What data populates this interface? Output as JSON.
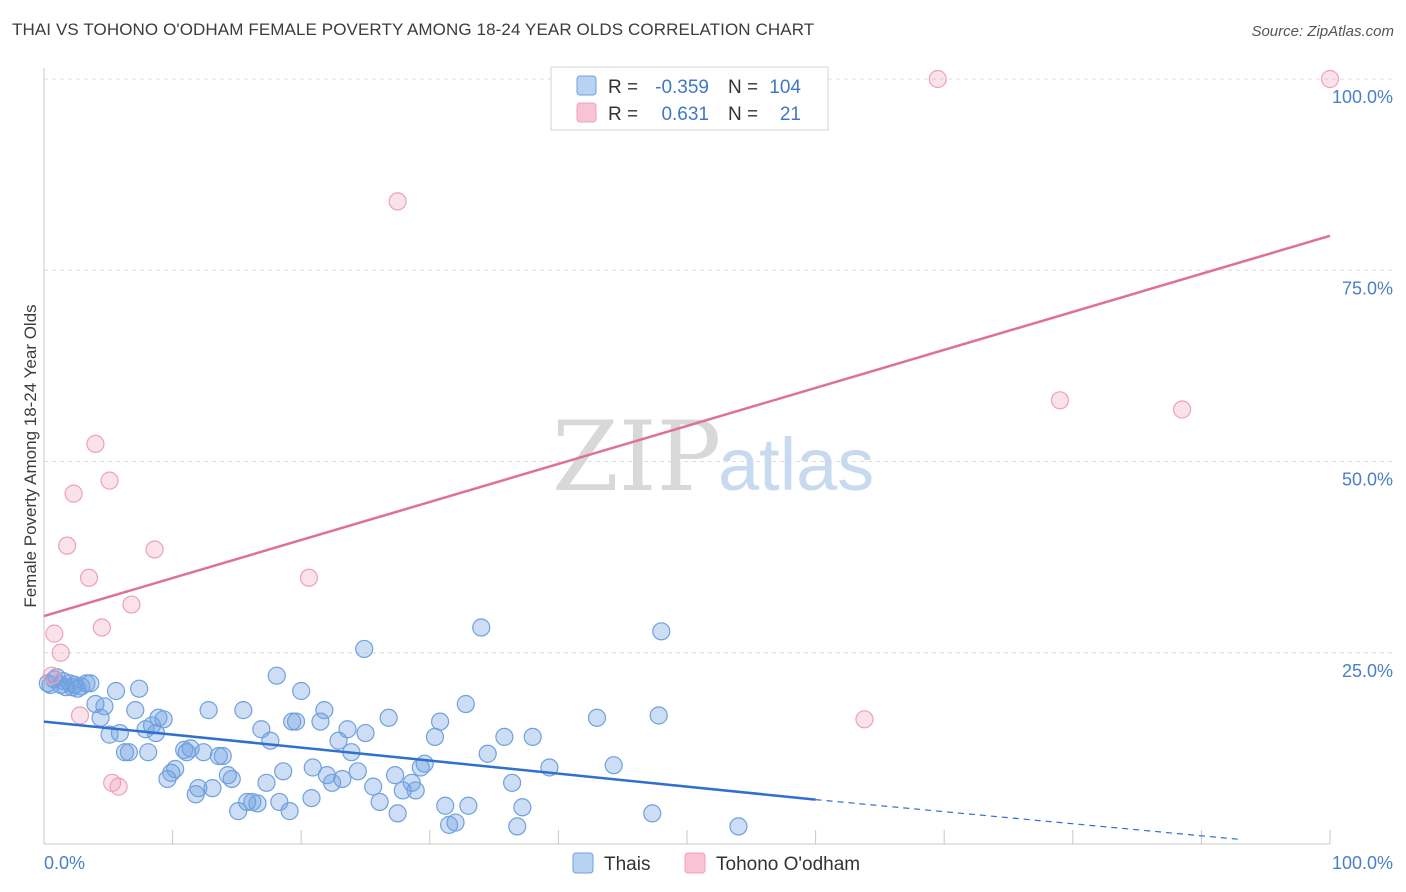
{
  "title": "THAI VS TOHONO O'ODHAM FEMALE POVERTY AMONG 18-24 YEAR OLDS CORRELATION CHART",
  "source": "Source: ZipAtlas.com",
  "watermark": {
    "zip": "ZIP",
    "atlas": "atlas"
  },
  "colors": {
    "thai": "#6fa0e0",
    "thai_line": "#2e6fd0",
    "tohono": "#f0a0b8",
    "tohono_line": "#e07098",
    "tick": "#4a7fc8"
  },
  "legend": [
    {
      "r_label": "R =",
      "r_value": "-0.359",
      "n_label": "N =",
      "n_value": "104"
    },
    {
      "r_label": "R =",
      "r_value": "0.631",
      "n_label": "N =",
      "n_value": "21"
    }
  ],
  "bottom_legend": [
    "Thais",
    "Tohono O'odham"
  ],
  "chart_data": {
    "type": "scatter",
    "title": "THAI VS TOHONO O'ODHAM FEMALE POVERTY AMONG 18-24 YEAR OLDS CORRELATION CHART",
    "xlabel": "",
    "ylabel": "Female Poverty Among 18-24 Year Olds",
    "xlim": [
      0,
      100
    ],
    "ylim": [
      0,
      100
    ],
    "x_tick_labels": [
      "0.0%",
      "100.0%"
    ],
    "y_ticks": [
      25,
      50,
      75,
      100
    ],
    "y_tick_labels": [
      "25.0%",
      "50.0%",
      "75.0%",
      "100.0%"
    ],
    "grid": true,
    "legend_position": "top-center",
    "series": [
      {
        "name": "Thais",
        "color": "#6fa0e0",
        "trend": {
          "x": [
            0,
            60
          ],
          "y": [
            16.0,
            5.8
          ],
          "dashed_to": [
            93,
            0.6
          ]
        },
        "points": [
          [
            0.3,
            21.0
          ],
          [
            0.5,
            20.8
          ],
          [
            0.8,
            21.5
          ],
          [
            1.0,
            21.8
          ],
          [
            1.3,
            20.8
          ],
          [
            1.5,
            21.3
          ],
          [
            1.7,
            20.5
          ],
          [
            2.0,
            21.0
          ],
          [
            2.2,
            20.5
          ],
          [
            2.4,
            20.8
          ],
          [
            2.6,
            20.3
          ],
          [
            2.9,
            20.6
          ],
          [
            3.3,
            21.0
          ],
          [
            3.6,
            21.0
          ],
          [
            4.0,
            18.3
          ],
          [
            4.4,
            16.5
          ],
          [
            4.7,
            18.0
          ],
          [
            5.1,
            14.3
          ],
          [
            5.6,
            20.0
          ],
          [
            5.9,
            14.5
          ],
          [
            6.3,
            12.0
          ],
          [
            6.6,
            12.0
          ],
          [
            7.1,
            17.5
          ],
          [
            7.4,
            20.3
          ],
          [
            7.9,
            15.0
          ],
          [
            8.1,
            12.0
          ],
          [
            8.4,
            15.5
          ],
          [
            8.7,
            14.5
          ],
          [
            8.9,
            16.5
          ],
          [
            9.3,
            16.3
          ],
          [
            9.6,
            8.5
          ],
          [
            9.9,
            9.3
          ],
          [
            10.2,
            9.8
          ],
          [
            10.9,
            12.3
          ],
          [
            11.1,
            12.0
          ],
          [
            11.4,
            12.5
          ],
          [
            11.8,
            6.5
          ],
          [
            12.0,
            7.3
          ],
          [
            12.4,
            12.0
          ],
          [
            12.8,
            17.5
          ],
          [
            13.1,
            7.3
          ],
          [
            13.6,
            11.5
          ],
          [
            13.9,
            11.5
          ],
          [
            14.3,
            9.0
          ],
          [
            14.6,
            8.5
          ],
          [
            15.1,
            4.3
          ],
          [
            15.5,
            17.5
          ],
          [
            15.8,
            5.5
          ],
          [
            16.2,
            5.5
          ],
          [
            16.6,
            5.3
          ],
          [
            16.9,
            15.0
          ],
          [
            17.3,
            8.0
          ],
          [
            17.6,
            13.5
          ],
          [
            18.1,
            22.0
          ],
          [
            18.3,
            5.5
          ],
          [
            18.6,
            9.5
          ],
          [
            19.1,
            4.3
          ],
          [
            19.3,
            16.0
          ],
          [
            19.6,
            16.0
          ],
          [
            20.0,
            20.0
          ],
          [
            20.8,
            6.0
          ],
          [
            20.9,
            10.0
          ],
          [
            21.5,
            16.0
          ],
          [
            21.8,
            17.5
          ],
          [
            22.0,
            9.0
          ],
          [
            22.4,
            8.0
          ],
          [
            22.9,
            13.5
          ],
          [
            23.2,
            8.5
          ],
          [
            23.6,
            15.0
          ],
          [
            23.9,
            12.0
          ],
          [
            24.4,
            9.5
          ],
          [
            24.9,
            25.5
          ],
          [
            25.0,
            14.5
          ],
          [
            25.6,
            7.5
          ],
          [
            26.1,
            5.5
          ],
          [
            26.8,
            16.5
          ],
          [
            27.3,
            9.0
          ],
          [
            27.5,
            4.0
          ],
          [
            27.9,
            7.0
          ],
          [
            28.6,
            8.0
          ],
          [
            28.9,
            7.0
          ],
          [
            29.3,
            10.0
          ],
          [
            29.6,
            10.5
          ],
          [
            30.4,
            14.0
          ],
          [
            30.8,
            16.0
          ],
          [
            31.2,
            5.0
          ],
          [
            31.5,
            2.5
          ],
          [
            32.0,
            2.8
          ],
          [
            32.8,
            18.3
          ],
          [
            33.0,
            5.0
          ],
          [
            34.0,
            28.3
          ],
          [
            34.5,
            11.8
          ],
          [
            35.8,
            14.0
          ],
          [
            36.4,
            8.0
          ],
          [
            36.8,
            2.3
          ],
          [
            37.2,
            4.8
          ],
          [
            38.0,
            14.0
          ],
          [
            39.3,
            10.0
          ],
          [
            43.0,
            16.5
          ],
          [
            44.3,
            10.3
          ],
          [
            47.3,
            4.0
          ],
          [
            47.8,
            16.8
          ],
          [
            48.0,
            27.8
          ],
          [
            54.0,
            2.3
          ]
        ]
      },
      {
        "name": "Tohono O'odham",
        "color": "#f0a0b8",
        "trend": {
          "x": [
            0,
            100
          ],
          "y": [
            29.8,
            79.5
          ]
        },
        "points": [
          [
            0.8,
            27.5
          ],
          [
            1.3,
            25.0
          ],
          [
            1.8,
            39.0
          ],
          [
            2.3,
            45.8
          ],
          [
            2.8,
            16.8
          ],
          [
            3.5,
            34.8
          ],
          [
            4.0,
            52.3
          ],
          [
            4.5,
            28.3
          ],
          [
            5.1,
            47.5
          ],
          [
            5.3,
            8.0
          ],
          [
            5.8,
            7.5
          ],
          [
            6.8,
            31.3
          ],
          [
            8.6,
            38.5
          ],
          [
            20.6,
            34.8
          ],
          [
            27.5,
            84.0
          ],
          [
            63.8,
            16.3
          ],
          [
            69.5,
            100
          ],
          [
            79.0,
            58.0
          ],
          [
            88.5,
            56.8
          ],
          [
            100,
            100
          ],
          [
            0.6,
            22.0
          ]
        ]
      }
    ]
  }
}
